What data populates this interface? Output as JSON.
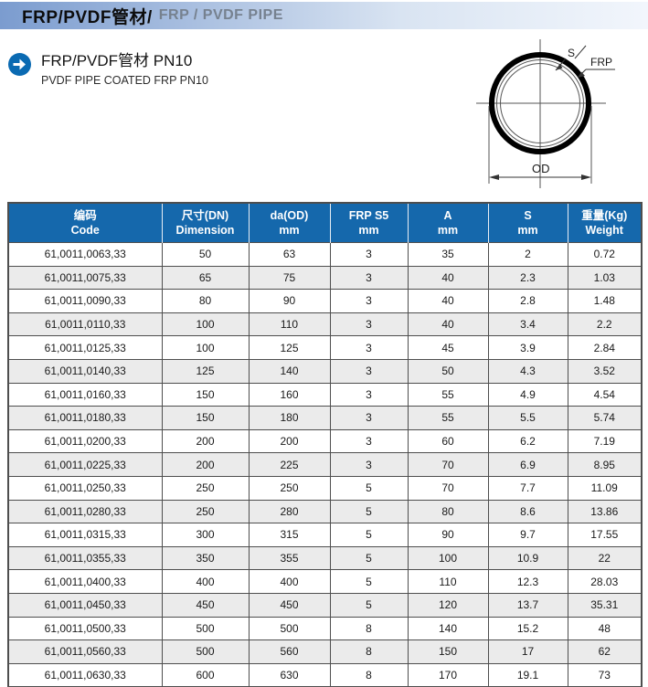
{
  "banner": {
    "title_zh": "FRP/PVDF管材/",
    "title_en": "FRP / PVDF PIPE"
  },
  "section": {
    "title": "FRP/PVDF管材  PN10",
    "subtitle": "PVDF PIPE COATED FRP  PN10"
  },
  "diagram": {
    "label_s": "S",
    "label_frp": "FRP",
    "label_od": "OD"
  },
  "colors": {
    "header_blue": "#1568ac",
    "banner_blue": "#7b9ccf",
    "alt_row_gray": "#ebebeb",
    "icon_blue": "#0a6ab2"
  },
  "table": {
    "headers": [
      {
        "line1": "编码",
        "line2": "Code"
      },
      {
        "line1": "尺寸(DN)",
        "line2": "Dimension"
      },
      {
        "line1": "da(OD)",
        "line2": "mm"
      },
      {
        "line1": "FRP S5",
        "line2": "mm"
      },
      {
        "line1": "A",
        "line2": "mm"
      },
      {
        "line1": "S",
        "line2": "mm"
      },
      {
        "line1": "重量(Kg)",
        "line2": "Weight"
      }
    ],
    "rows": [
      [
        "61,0011,0063,33",
        "50",
        "63",
        "3",
        "35",
        "2",
        "0.72"
      ],
      [
        "61,0011,0075,33",
        "65",
        "75",
        "3",
        "40",
        "2.3",
        "1.03"
      ],
      [
        "61,0011,0090,33",
        "80",
        "90",
        "3",
        "40",
        "2.8",
        "1.48"
      ],
      [
        "61,0011,0110,33",
        "100",
        "110",
        "3",
        "40",
        "3.4",
        "2.2"
      ],
      [
        "61,0011,0125,33",
        "100",
        "125",
        "3",
        "45",
        "3.9",
        "2.84"
      ],
      [
        "61,0011,0140,33",
        "125",
        "140",
        "3",
        "50",
        "4.3",
        "3.52"
      ],
      [
        "61,0011,0160,33",
        "150",
        "160",
        "3",
        "55",
        "4.9",
        "4.54"
      ],
      [
        "61,0011,0180,33",
        "150",
        "180",
        "3",
        "55",
        "5.5",
        "5.74"
      ],
      [
        "61,0011,0200,33",
        "200",
        "200",
        "3",
        "60",
        "6.2",
        "7.19"
      ],
      [
        "61,0011,0225,33",
        "200",
        "225",
        "3",
        "70",
        "6.9",
        "8.95"
      ],
      [
        "61,0011,0250,33",
        "250",
        "250",
        "5",
        "70",
        "7.7",
        "11.09"
      ],
      [
        "61,0011,0280,33",
        "250",
        "280",
        "5",
        "80",
        "8.6",
        "13.86"
      ],
      [
        "61,0011,0315,33",
        "300",
        "315",
        "5",
        "90",
        "9.7",
        "17.55"
      ],
      [
        "61,0011,0355,33",
        "350",
        "355",
        "5",
        "100",
        "10.9",
        "22"
      ],
      [
        "61,0011,0400,33",
        "400",
        "400",
        "5",
        "110",
        "12.3",
        "28.03"
      ],
      [
        "61,0011,0450,33",
        "450",
        "450",
        "5",
        "120",
        "13.7",
        "35.31"
      ],
      [
        "61,0011,0500,33",
        "500",
        "500",
        "8",
        "140",
        "15.2",
        "48"
      ],
      [
        "61,0011,0560,33",
        "500",
        "560",
        "8",
        "150",
        "17",
        "62"
      ],
      [
        "61,0011,0630,33",
        "600",
        "630",
        "8",
        "170",
        "19.1",
        "73"
      ]
    ]
  }
}
